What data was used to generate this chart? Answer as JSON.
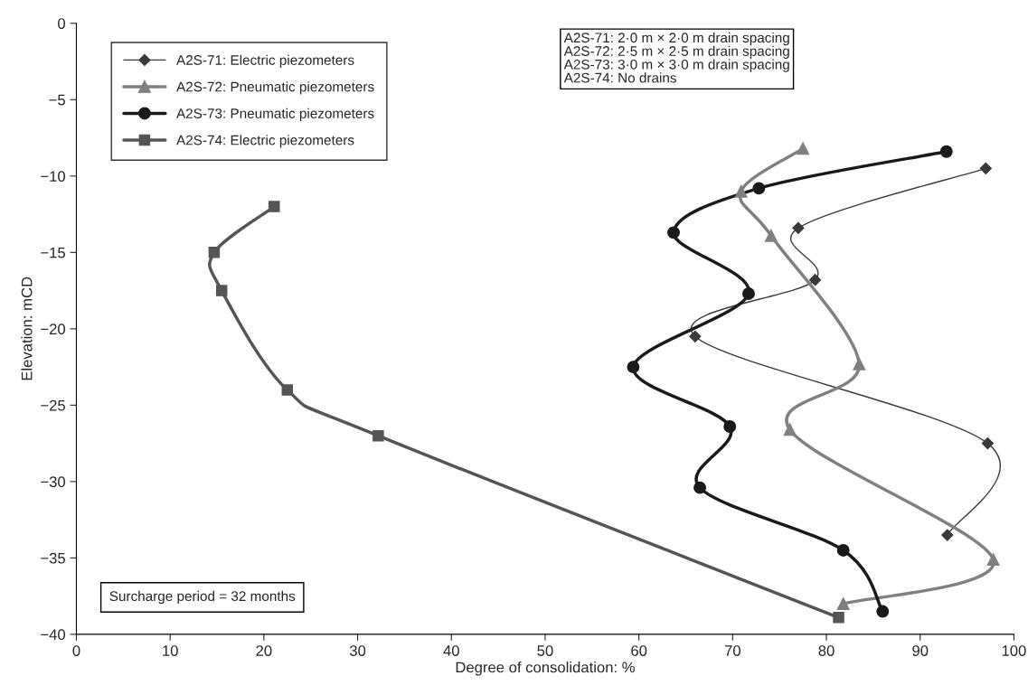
{
  "chart_data": {
    "type": "line",
    "xlabel": "Degree of consolidation: %",
    "ylabel": "Elevation: mCD",
    "xlim": [
      0,
      100
    ],
    "xticks": [
      0,
      10,
      20,
      30,
      40,
      50,
      60,
      70,
      80,
      90,
      100
    ],
    "ylim": [
      -40,
      0
    ],
    "yticks": [
      {
        "value": -40,
        "label": "−40"
      },
      {
        "value": -35,
        "label": "−35"
      },
      {
        "value": -30,
        "label": "−30"
      },
      {
        "value": -25,
        "label": "−25"
      },
      {
        "value": -20,
        "label": "−20"
      },
      {
        "value": -15,
        "label": "−15"
      },
      {
        "value": -10,
        "label": "−10"
      },
      {
        "value": -5,
        "label": "−5"
      },
      0
    ],
    "grid": false,
    "legend": "top left",
    "series": [
      {
        "name": "A2S-71: Electric piezometers",
        "color": "#3a3a3a",
        "marker": "diamond",
        "x": [
          97.0,
          77.0,
          78.8,
          66.0,
          97.2,
          92.9
        ],
        "values": [
          -9.5,
          -13.4,
          -16.8,
          -20.5,
          -27.5,
          -33.5
        ]
      },
      {
        "name": "A2S-72: Pneumatic piezometers",
        "color": "#808080",
        "marker": "triangle",
        "x": [
          77.5,
          70.9,
          74.1,
          83.5,
          76.1,
          97.8,
          81.8
        ],
        "values": [
          -8.2,
          -11.0,
          -13.9,
          -22.3,
          -26.6,
          -35.1,
          -38.0
        ]
      },
      {
        "name": "A2S-73: Pneumatic piezometers",
        "color": "#1a1a1a",
        "marker": "circle",
        "x": [
          92.8,
          72.8,
          63.7,
          71.7,
          59.4,
          69.7,
          66.5,
          81.8,
          86.0
        ],
        "values": [
          -8.4,
          -10.8,
          -13.7,
          -17.7,
          -22.5,
          -26.4,
          -30.4,
          -34.5,
          -38.5
        ]
      },
      {
        "name": "A2S-74: Electric piezometers",
        "color": "#555555",
        "marker": "square",
        "x": [
          21.1,
          14.7,
          15.5,
          22.5,
          32.2,
          81.3
        ],
        "values": [
          -12.0,
          -15.0,
          -17.5,
          -24.0,
          -27.0,
          -38.9
        ]
      }
    ],
    "annotations": [
      "A2S-71: 2·0 m × 2·0 m drain spacing\nA2S-72: 2·5 m × 2·5 m drain spacing\nA2S-73: 3·0 m × 3·0 m drain spacing\nA2S-74: No drains",
      "Surcharge period = 32 months"
    ]
  }
}
